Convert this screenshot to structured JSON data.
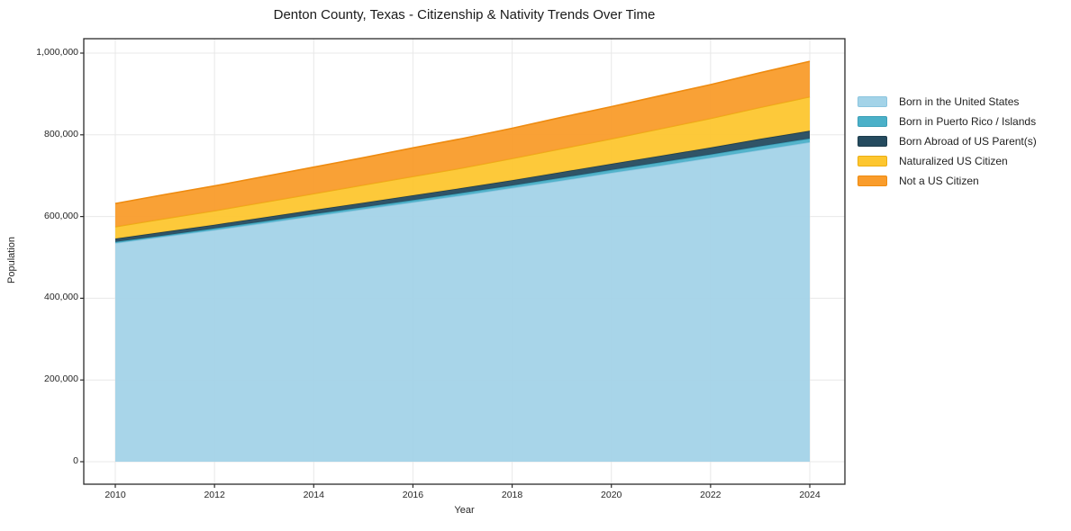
{
  "title": "Denton County, Texas - Citizenship & Nativity Trends Over Time",
  "chart_data": {
    "type": "area",
    "stacked": true,
    "title": "Denton County, Texas - Citizenship & Nativity Trends Over Time",
    "xlabel": "Year",
    "ylabel": "Population",
    "x": [
      2010,
      2011,
      2012,
      2013,
      2014,
      2015,
      2016,
      2017,
      2018,
      2019,
      2020,
      2021,
      2022,
      2023,
      2024
    ],
    "series": [
      {
        "name": "Born in the United States",
        "color": "#a3d3e8",
        "edge": "#8cc5df",
        "values": [
          535000,
          551000,
          567000,
          584000,
          601000,
          618000,
          635000,
          652000,
          670000,
          688000,
          707000,
          725000,
          744000,
          763000,
          782000
        ]
      },
      {
        "name": "Born in Puerto Rico / Islands",
        "color": "#4bb0c8",
        "edge": "#3a9fb7",
        "values": [
          3000,
          3000,
          4000,
          4000,
          5000,
          5000,
          5000,
          6000,
          6000,
          7000,
          7000,
          8000,
          8000,
          9000,
          9000
        ]
      },
      {
        "name": "Born Abroad of US Parent(s)",
        "color": "#254b5f",
        "edge": "#1d3c4c",
        "values": [
          8000,
          9000,
          9000,
          10000,
          10000,
          11000,
          12000,
          12000,
          13000,
          14000,
          15000,
          16000,
          17000,
          18000,
          19000
        ]
      },
      {
        "name": "Naturalized US Citizen",
        "color": "#fdc62f",
        "edge": "#ecae14",
        "values": [
          29000,
          32000,
          34000,
          37000,
          40000,
          43000,
          46000,
          49000,
          53000,
          57000,
          61000,
          66000,
          71000,
          77000,
          83000
        ]
      },
      {
        "name": "Not a US Citizen",
        "color": "#f99c2b",
        "edge": "#ee8b10",
        "values": [
          57000,
          59000,
          61000,
          63000,
          65000,
          67000,
          70000,
          72000,
          74000,
          77000,
          79000,
          81000,
          83000,
          85000,
          87000
        ]
      }
    ],
    "x_ticks": [
      2010,
      2012,
      2014,
      2016,
      2018,
      2020,
      2022,
      2024
    ],
    "y_ticks": [
      0,
      200000,
      400000,
      600000,
      800000,
      1000000
    ],
    "y_tick_labels": [
      "0",
      "200,000",
      "400,000",
      "600,000",
      "800,000",
      "1,000,000"
    ],
    "ylim": [
      0,
      1000000
    ],
    "grid": true,
    "legend_position": "right-outside",
    "colors": {
      "grid": "#e8e8e8",
      "spine": "#2b2b2b",
      "tick_text": "#262626",
      "title_text": "#1a1a1a"
    }
  }
}
